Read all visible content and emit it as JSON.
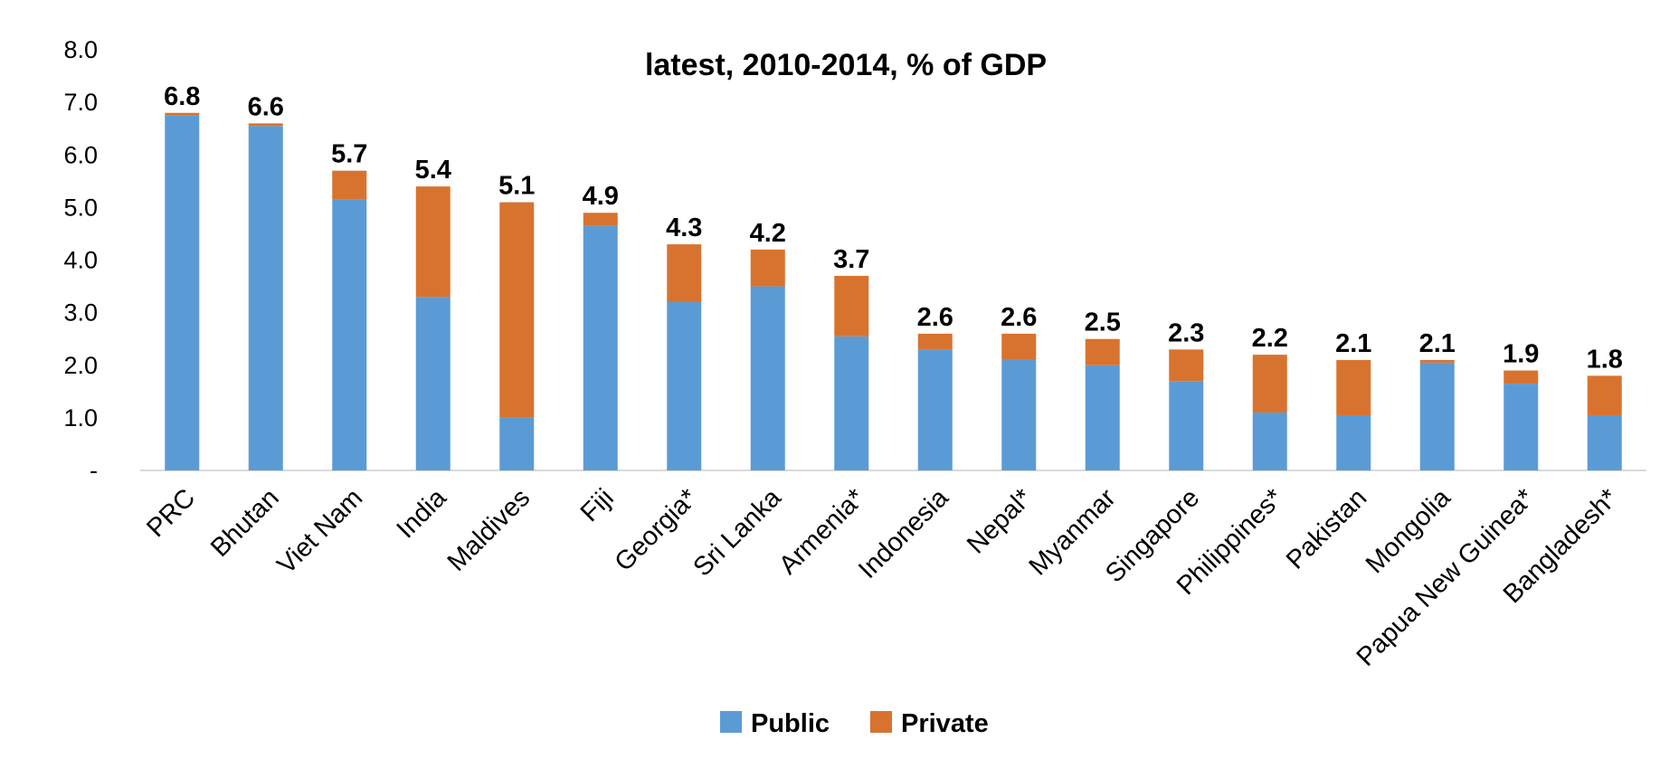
{
  "chart_data": {
    "type": "bar",
    "stacked": true,
    "title": "latest, 2010-2014,  % of GDP",
    "xlabel": "",
    "ylabel": "",
    "ylim": [
      0,
      8
    ],
    "yticks": [
      {
        "value": 0,
        "label": "-"
      },
      {
        "value": 1,
        "label": "1.0"
      },
      {
        "value": 2,
        "label": "2.0"
      },
      {
        "value": 3,
        "label": "3.0"
      },
      {
        "value": 4,
        "label": "4.0"
      },
      {
        "value": 5,
        "label": "5.0"
      },
      {
        "value": 6,
        "label": "6.0"
      },
      {
        "value": 7,
        "label": "7.0"
      },
      {
        "value": 8,
        "label": "8.0"
      }
    ],
    "categories": [
      "PRC",
      "Bhutan",
      "Viet Nam",
      "India",
      "Maldives",
      "Fiji",
      "Georgia*",
      "Sri Lanka",
      "Armenia*",
      "Indonesia",
      "Nepal*",
      "Myanmar",
      "Singapore",
      "Philippines*",
      "Pakistan",
      "Mongolia",
      "Papua New Guinea*",
      "Bangladesh*"
    ],
    "series": [
      {
        "name": "Public",
        "color": "#5B9BD5",
        "values": [
          6.75,
          6.55,
          5.15,
          3.3,
          1.0,
          4.65,
          3.2,
          3.5,
          2.55,
          2.3,
          2.1,
          2.0,
          1.7,
          1.1,
          1.05,
          2.05,
          1.65,
          1.05
        ]
      },
      {
        "name": "Private",
        "color": "#D8732F",
        "values": [
          0.05,
          0.05,
          0.55,
          2.1,
          4.1,
          0.25,
          1.1,
          0.7,
          1.15,
          0.3,
          0.5,
          0.5,
          0.6,
          1.1,
          1.05,
          0.05,
          0.25,
          0.75
        ]
      }
    ],
    "total_labels": [
      "6.8",
      "6.6",
      "5.7",
      "5.4",
      "5.1",
      "4.9",
      "4.3",
      "4.2",
      "3.7",
      "2.6",
      "2.6",
      "2.5",
      "2.3",
      "2.2",
      "2.1",
      "2.1",
      "1.9",
      "1.8"
    ],
    "grid": false,
    "legend": "bottom"
  }
}
